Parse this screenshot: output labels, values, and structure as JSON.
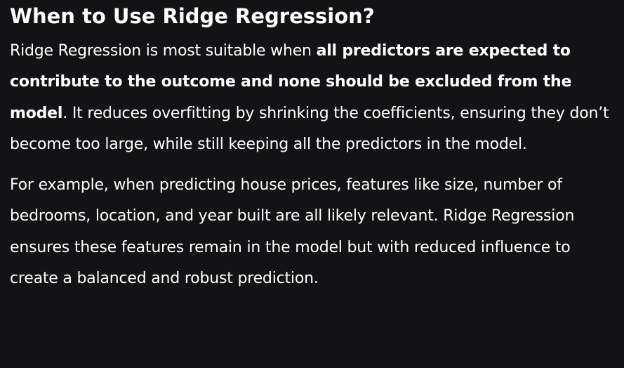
{
  "heading": "When to Use Ridge Regression?",
  "paragraph1": {
    "lead": "Ridge Regression is most suitable when ",
    "bold": "all predictors are expected to contribute to the outcome and none should be excluded from the model",
    "tail": ". It reduces overfitting by shrinking the coefficients, ensuring they don’t become too large, while still keeping all the predictors in the model."
  },
  "paragraph2": "For example, when predicting house prices, features like size, number of bedrooms, location, and year built are all likely relevant. Ridge Regression ensures these features remain in the model but with reduced influence to create a balanced and robust prediction."
}
